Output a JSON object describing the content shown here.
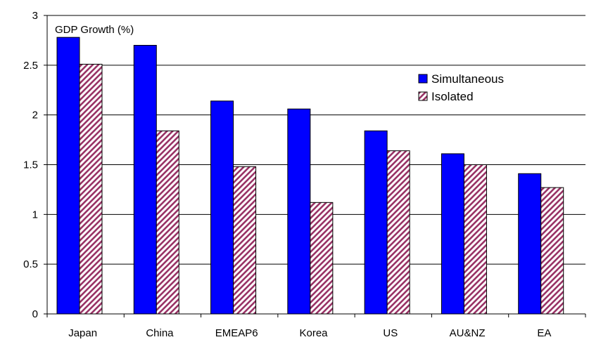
{
  "chart_data": {
    "type": "bar",
    "title": "GDP Growth (%)",
    "xlabel": "",
    "ylabel": "",
    "categories": [
      "Japan",
      "China",
      "EMEAP6",
      "Korea",
      "US",
      "AU&NZ",
      "EA"
    ],
    "series": [
      {
        "name": "Simultaneous",
        "values": [
          2.78,
          2.7,
          2.14,
          2.06,
          1.84,
          1.61,
          1.41
        ],
        "color": "#0000ff",
        "pattern": "solid"
      },
      {
        "name": "Isolated",
        "values": [
          2.51,
          1.84,
          1.48,
          1.12,
          1.64,
          1.5,
          1.27
        ],
        "color": "#993366",
        "pattern": "diagonal-stripes"
      }
    ],
    "ylim": [
      0,
      3
    ],
    "yticks": [
      "0",
      "0.5",
      "1",
      "1.5",
      "2",
      "2.5",
      "3"
    ],
    "grid": "horizontal",
    "legend": "upper-right inside plot"
  }
}
